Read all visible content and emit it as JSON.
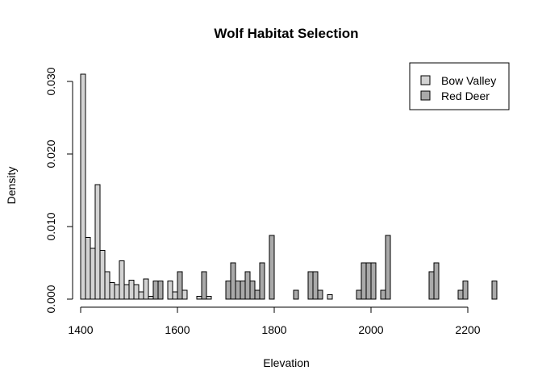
{
  "chart_data": {
    "type": "bar",
    "title": "Wolf Habitat Selection",
    "xlabel": "Elevation",
    "ylabel": "Density",
    "xlim": [
      1400,
      2260
    ],
    "ylim": [
      0,
      0.031
    ],
    "x_ticks": [
      1400,
      1600,
      1800,
      2000,
      2200
    ],
    "y_ticks": [
      "0.000",
      "0.010",
      "0.020",
      "0.030"
    ],
    "y_tick_values": [
      0.0,
      0.01,
      0.02,
      0.03
    ],
    "bin_width": 10,
    "legend_position": "top-right",
    "series": [
      {
        "name": "Bow Valley",
        "color": "#d3d3d3",
        "bin_starts": [
          1400,
          1410,
          1420,
          1430,
          1440,
          1450,
          1460,
          1470,
          1480,
          1490,
          1500,
          1510,
          1520,
          1530,
          1540,
          1550,
          1560,
          1570,
          1580,
          1590,
          1600,
          1610,
          1620,
          1630,
          1640,
          1650,
          1660,
          1670,
          1680,
          1690,
          1700,
          1710,
          1720,
          1730,
          1740,
          1750,
          1760,
          1770,
          1780,
          1790,
          1800,
          1810,
          1820,
          1830,
          1840,
          1850,
          1860,
          1870,
          1880,
          1890,
          1900,
          1910
        ],
        "values": [
          0.031,
          0.0085,
          0.007,
          0.0158,
          0.0067,
          0.0038,
          0.0023,
          0.002,
          0.0053,
          0.002,
          0.0026,
          0.002,
          0.001,
          0.0028,
          0.0004,
          0.0025,
          0.0012,
          0,
          0.0025,
          0.001,
          0.0018,
          0.0012,
          0,
          0,
          0.0004,
          0.001,
          0.0004,
          0,
          0,
          0,
          0,
          0,
          0,
          0,
          0,
          0,
          0,
          0,
          0,
          0,
          0,
          0,
          0,
          0,
          0,
          0,
          0,
          0,
          0,
          0,
          0,
          0.0006
        ]
      },
      {
        "name": "Red Deer",
        "color": "#a9a9a9",
        "bin_starts": [
          1550,
          1560,
          1570,
          1580,
          1590,
          1600,
          1610,
          1620,
          1630,
          1640,
          1650,
          1660,
          1670,
          1680,
          1690,
          1700,
          1710,
          1720,
          1730,
          1740,
          1750,
          1760,
          1770,
          1780,
          1790,
          1800,
          1810,
          1820,
          1830,
          1840,
          1850,
          1860,
          1870,
          1880,
          1890,
          1900,
          1910,
          1920,
          1930,
          1940,
          1950,
          1960,
          1970,
          1980,
          1990,
          2000,
          2010,
          2020,
          2030,
          2040,
          2050,
          2060,
          2070,
          2080,
          2090,
          2100,
          2110,
          2120,
          2130,
          2140,
          2150,
          2160,
          2170,
          2180,
          2190,
          2200,
          2210,
          2220,
          2230,
          2240,
          2250
        ],
        "values": [
          0.0025,
          0.0025,
          0,
          0,
          0,
          0.0038,
          0,
          0,
          0,
          0,
          0.0038,
          0,
          0,
          0,
          0,
          0.0025,
          0.005,
          0.0025,
          0.0025,
          0.0038,
          0.0025,
          0.0012,
          0.005,
          0,
          0.0088,
          0,
          0,
          0,
          0,
          0.0012,
          0,
          0,
          0.0038,
          0.0038,
          0.0012,
          0,
          0,
          0,
          0,
          0,
          0,
          0,
          0.0012,
          0.005,
          0.005,
          0.005,
          0,
          0.0012,
          0.0088,
          0,
          0,
          0,
          0,
          0,
          0,
          0,
          0,
          0.0038,
          0.005,
          0,
          0,
          0,
          0,
          0.0012,
          0.0025,
          0,
          0,
          0,
          0,
          0,
          0.0025
        ]
      }
    ]
  }
}
